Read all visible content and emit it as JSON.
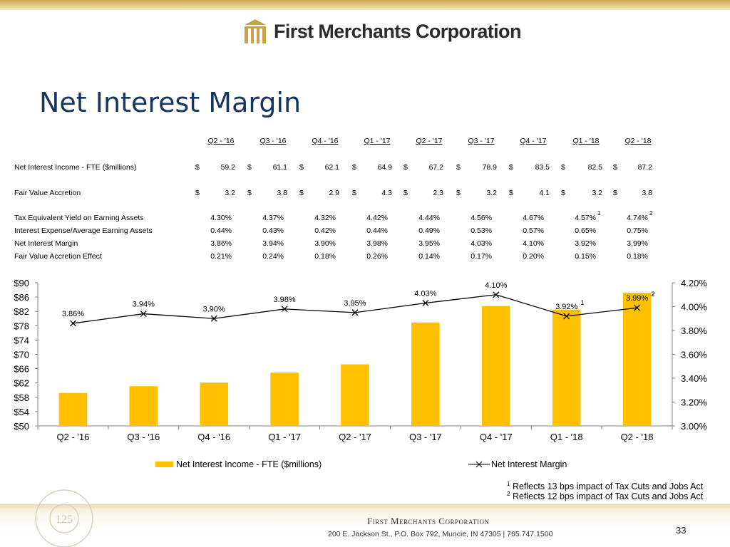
{
  "header": {
    "company_name": "First Merchants Corporation",
    "logo_icon": "fmc-building-logo"
  },
  "title": "Net Interest Margin",
  "table": {
    "columns": [
      "Q2 - '16",
      "Q3 - '16",
      "Q4 - '16",
      "Q1 - '17",
      "Q2 - '17",
      "Q3 - '17",
      "Q4 - '17",
      "Q1 - '18",
      "Q2 - '18"
    ],
    "currency_rows": [
      {
        "label": "Net Interest Income - FTE ($millions)",
        "values": [
          "59.2",
          "61.1",
          "62.1",
          "64.9",
          "67.2",
          "78.9",
          "83.5",
          "82.5",
          "87.2"
        ]
      },
      {
        "label": "Fair Value Accretion",
        "values": [
          "3.2",
          "3.8",
          "2.9",
          "4.3",
          "2.3",
          "3.2",
          "4.1",
          "3.2",
          "3.8"
        ]
      }
    ],
    "pct_rows": [
      {
        "label": "Tax Equivalent Yield on Earning Assets",
        "values": [
          "4.30%",
          "4.37%",
          "4.32%",
          "4.42%",
          "4.44%",
          "4.56%",
          "4.67%",
          "4.57%",
          "4.74%"
        ],
        "notes": [
          "",
          "",
          "",
          "",
          "",
          "",
          "",
          "1",
          "2"
        ]
      },
      {
        "label": "Interest Expense/Average Earning Assets",
        "values": [
          "0.44%",
          "0.43%",
          "0.42%",
          "0.44%",
          "0.49%",
          "0.53%",
          "0.57%",
          "0.65%",
          "0.75%"
        ]
      },
      {
        "label": "Net Interest Margin",
        "values": [
          "3.86%",
          "3.94%",
          "3.90%",
          "3.98%",
          "3.95%",
          "4.03%",
          "4.10%",
          "3.92%",
          "3.99%"
        ]
      },
      {
        "label": "Fair Value Accretion Effect",
        "values": [
          "0.21%",
          "0.24%",
          "0.18%",
          "0.26%",
          "0.14%",
          "0.17%",
          "0.20%",
          "0.15%",
          "0.18%"
        ]
      }
    ],
    "currency_symbol": "$"
  },
  "chart_data": {
    "type": "bar",
    "categories": [
      "Q2 - '16",
      "Q3 - '16",
      "Q4 - '16",
      "Q1 - '17",
      "Q2 - '17",
      "Q3 - '17",
      "Q4 - '17",
      "Q1 - '18",
      "Q2 - '18"
    ],
    "series": [
      {
        "name": "Net Interest Income - FTE ($millions)",
        "type": "bar",
        "axis": "left",
        "color": "#ffc000",
        "values": [
          59.2,
          61.1,
          62.1,
          64.9,
          67.2,
          78.9,
          83.5,
          82.5,
          87.2
        ]
      },
      {
        "name": "Net Interest Margin",
        "type": "line",
        "axis": "right",
        "color": "#000000",
        "marker": "x",
        "values": [
          3.86,
          3.94,
          3.9,
          3.98,
          3.95,
          4.03,
          4.1,
          3.92,
          3.99
        ],
        "labels": [
          "3.86%",
          "3.94%",
          "3.90%",
          "3.98%",
          "3.95%",
          "4.03%",
          "4.10%",
          "3.92%",
          "3.99%"
        ],
        "label_notes": [
          "",
          "",
          "",
          "",
          "",
          "",
          "",
          "1",
          "2"
        ]
      }
    ],
    "left_axis": {
      "min": 50,
      "max": 90,
      "step": 4,
      "ticks": [
        "$50",
        "$54",
        "$58",
        "$62",
        "$66",
        "$70",
        "$74",
        "$78",
        "$82",
        "$86",
        "$90"
      ]
    },
    "right_axis": {
      "min": 3.0,
      "max": 4.2,
      "step": 0.2,
      "ticks": [
        "3.00%",
        "3.20%",
        "3.40%",
        "3.60%",
        "3.80%",
        "4.00%",
        "4.20%"
      ]
    },
    "legend_position": "bottom",
    "grid": false
  },
  "footnotes": [
    {
      "mark": "1",
      "text": "Reflects 13 bps impact of Tax Cuts and Jobs Act"
    },
    {
      "mark": "2",
      "text": "Reflects 12 bps impact of Tax Cuts and Jobs Act"
    }
  ],
  "footer": {
    "company": "First Merchants Corporation",
    "address": "200 E. Jackson St., P.O. Box 792, Muncie, IN 47305  |  765.747.1500",
    "page_number": "33",
    "anniversary_logo": "first-merchants-125-anniversary-seal"
  },
  "colors": {
    "accent_gold": "#c7a64e",
    "title_blue": "#16365d",
    "bar": "#ffc000"
  }
}
